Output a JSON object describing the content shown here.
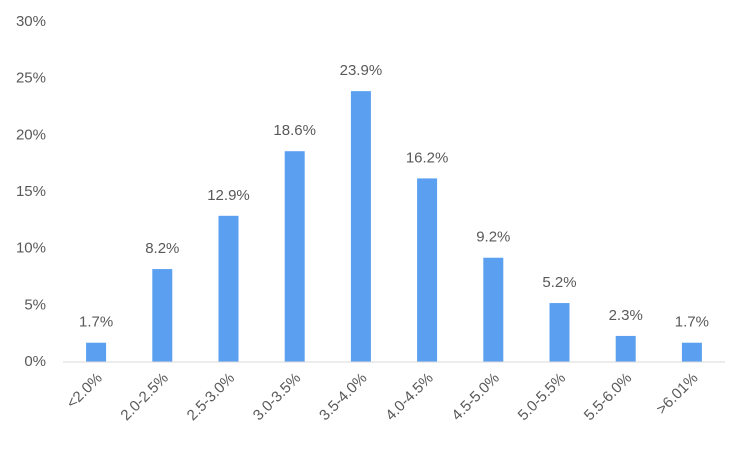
{
  "chart_data": {
    "type": "bar",
    "categories": [
      "<2.0%",
      "2.0-2.5%",
      "2.5-3.0%",
      "3.0-3.5%",
      "3.5-4.0%",
      "4.0-4.5%",
      "4.5-5.0%",
      "5.0-5.5%",
      "5.5-6.0%",
      ">6.01%"
    ],
    "values": [
      1.7,
      8.2,
      12.9,
      18.6,
      23.9,
      16.2,
      9.2,
      5.2,
      2.3,
      1.7
    ],
    "value_labels": [
      "1.7%",
      "8.2%",
      "12.9%",
      "18.6%",
      "23.9%",
      "16.2%",
      "9.2%",
      "5.2%",
      "2.3%",
      "1.7%"
    ],
    "color": "#5b9ff0",
    "ylim": [
      0,
      30
    ],
    "yticks": [
      {
        "value": 0,
        "label": "0%"
      },
      {
        "value": 5,
        "label": "5%"
      },
      {
        "value": 10,
        "label": "10%"
      },
      {
        "value": 15,
        "label": "15%"
      },
      {
        "value": 20,
        "label": "20%"
      },
      {
        "value": 25,
        "label": "25%"
      },
      {
        "value": 30,
        "label": "30%"
      }
    ],
    "grid": false
  }
}
